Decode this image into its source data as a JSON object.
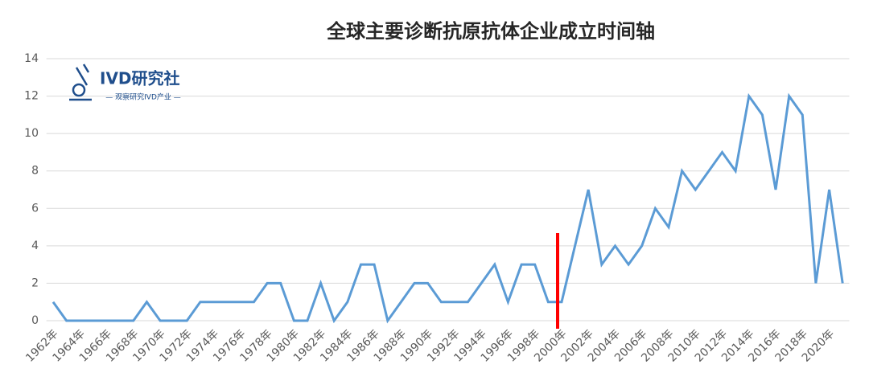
{
  "logo": {
    "title": "IVD研究社",
    "subtitle": "— 观察研究IVD产业 —"
  },
  "chart_data": {
    "type": "line",
    "title": "全球主要诊断抗原抗体企业成立时间轴",
    "categories": [
      "1962年",
      null,
      "1964年",
      null,
      "1966年",
      null,
      "1968年",
      null,
      "1970年",
      null,
      "1972年",
      null,
      "1974年",
      null,
      "1976年",
      null,
      "1978年",
      null,
      "1980年",
      null,
      "1982年",
      null,
      "1984年",
      null,
      "1986年",
      null,
      "1988年",
      null,
      "1990年",
      null,
      "1992年",
      null,
      "1994年",
      null,
      "1996年",
      null,
      "1998年",
      null,
      "2000年",
      null,
      "2002年",
      null,
      "2004年",
      null,
      "2006年",
      null,
      "2008年",
      null,
      "2010年",
      null,
      "2012年",
      null,
      "2014年",
      null,
      "2016年",
      null,
      "2018年",
      null,
      "2020年",
      null
    ],
    "values": [
      1,
      0,
      0,
      0,
      0,
      0,
      0,
      1,
      0,
      0,
      0,
      1,
      1,
      1,
      1,
      1,
      2,
      2,
      0,
      0,
      2,
      0,
      1,
      3,
      3,
      0,
      1,
      2,
      2,
      1,
      1,
      1,
      2,
      3,
      1,
      3,
      3,
      1,
      1,
      4,
      7,
      3,
      4,
      3,
      4,
      6,
      5,
      8,
      7,
      8,
      9,
      8,
      12,
      11,
      7,
      12,
      11,
      2,
      7,
      2
    ],
    "color": "#5b9bd5",
    "ylim": [
      0,
      14
    ],
    "yticks": [
      0,
      2,
      4,
      6,
      8,
      10,
      12,
      14
    ],
    "grid": true
  }
}
